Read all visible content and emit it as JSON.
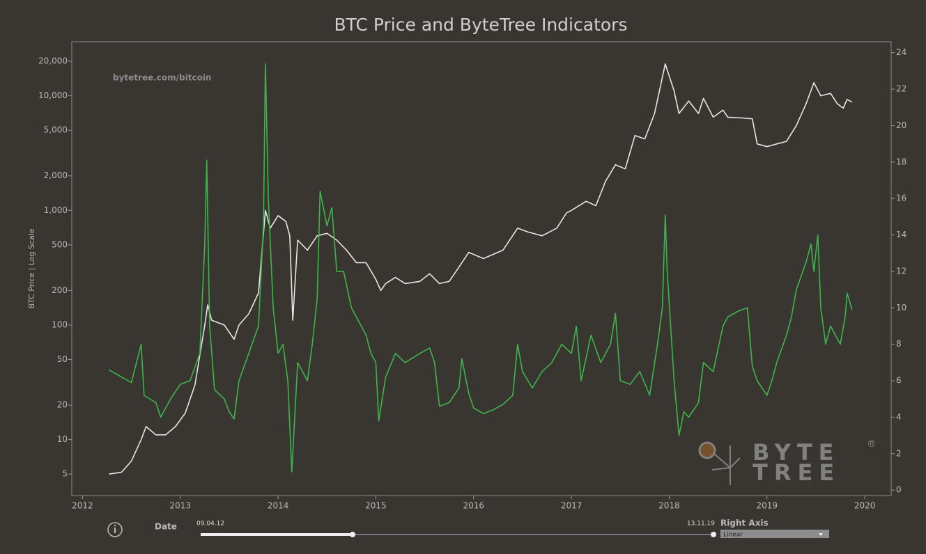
{
  "chart_data": {
    "type": "line",
    "title": "BTC Price and ByteTree Indicators",
    "ylabel": "BTC Price | Log Scale",
    "annotation": "bytetree.com/bitcoin",
    "log_y": true,
    "grid": false,
    "xlim": [
      2011.89,
      2020.27
    ],
    "xticks": [
      2012,
      2013,
      2014,
      2015,
      2016,
      2017,
      2018,
      2019,
      2020
    ],
    "ylim": [
      3.25,
      29600
    ],
    "yticks": [
      {
        "value": 20000,
        "label": "20,000"
      },
      {
        "value": 10000,
        "label": "10,000"
      },
      {
        "value": 5000,
        "label": "5,000"
      },
      {
        "value": 2000,
        "label": "2,000"
      },
      {
        "value": 1000,
        "label": "1,000"
      },
      500,
      200,
      100,
      50,
      20,
      10,
      5
    ],
    "y2lim": [
      -0.3,
      24.6
    ],
    "y2ticks": [
      0,
      2,
      4,
      6,
      8,
      10,
      12,
      14,
      16,
      18,
      20,
      22,
      24
    ],
    "series": [
      {
        "color": "#e6e6e6",
        "x": [
          2012.27,
          2012.4,
          2012.5,
          2012.6,
          2012.65,
          2012.75,
          2012.85,
          2012.95,
          2013.05,
          2013.15,
          2013.25,
          2013.28,
          2013.32,
          2013.45,
          2013.55,
          2013.6,
          2013.7,
          2013.8,
          2013.87,
          2013.92,
          2014.0,
          2014.08,
          2014.12,
          2014.15,
          2014.2,
          2014.3,
          2014.4,
          2014.5,
          2014.6,
          2014.7,
          2014.8,
          2014.9,
          2015.0,
          2015.05,
          2015.1,
          2015.2,
          2015.3,
          2015.45,
          2015.55,
          2015.65,
          2015.75,
          2015.85,
          2015.95,
          2016.1,
          2016.3,
          2016.45,
          2016.55,
          2016.7,
          2016.85,
          2016.95,
          2017.0,
          2017.15,
          2017.25,
          2017.35,
          2017.45,
          2017.55,
          2017.65,
          2017.75,
          2017.85,
          2017.96,
          2018.05,
          2018.1,
          2018.2,
          2018.3,
          2018.35,
          2018.45,
          2018.55,
          2018.6,
          2018.75,
          2018.85,
          2018.9,
          2019.0,
          2019.1,
          2019.2,
          2019.3,
          2019.4,
          2019.48,
          2019.55,
          2019.65,
          2019.72,
          2019.78,
          2019.82,
          2019.87
        ],
        "values": [
          5,
          5.2,
          6.5,
          10,
          13,
          11,
          11,
          13,
          17,
          30,
          100,
          150,
          110,
          100,
          75,
          100,
          125,
          190,
          1000,
          700,
          900,
          800,
          600,
          110,
          550,
          450,
          600,
          630,
          550,
          450,
          350,
          350,
          250,
          200,
          230,
          260,
          230,
          240,
          280,
          230,
          240,
          320,
          430,
          380,
          450,
          700,
          650,
          600,
          700,
          950,
          1000,
          1200,
          1100,
          1800,
          2500,
          2300,
          4500,
          4200,
          7000,
          19000,
          11000,
          7000,
          9000,
          7000,
          9500,
          6500,
          7500,
          6500,
          6400,
          6300,
          3800,
          3600,
          3800,
          4000,
          5500,
          8500,
          13000,
          10000,
          10500,
          8500,
          7800,
          9300,
          8800
        ]
      },
      {
        "color": "#3db54a",
        "axis": "y2",
        "x": [
          2012.27,
          2012.4,
          2012.5,
          2012.6,
          2012.63,
          2012.75,
          2012.8,
          2012.9,
          2013.0,
          2013.1,
          2013.2,
          2013.25,
          2013.27,
          2013.3,
          2013.35,
          2013.45,
          2013.5,
          2013.55,
          2013.6,
          2013.7,
          2013.8,
          2013.85,
          2013.87,
          2013.9,
          2013.95,
          2014.0,
          2014.05,
          2014.1,
          2014.14,
          2014.2,
          2014.3,
          2014.35,
          2014.4,
          2014.43,
          2014.5,
          2014.55,
          2014.6,
          2014.67,
          2014.75,
          2014.8,
          2014.9,
          2014.95,
          2015.0,
          2015.03,
          2015.1,
          2015.2,
          2015.3,
          2015.45,
          2015.55,
          2015.6,
          2015.65,
          2015.75,
          2015.85,
          2015.88,
          2015.95,
          2016.0,
          2016.1,
          2016.2,
          2016.3,
          2016.4,
          2016.45,
          2016.5,
          2016.6,
          2016.7,
          2016.8,
          2016.9,
          2017.0,
          2017.05,
          2017.1,
          2017.2,
          2017.3,
          2017.4,
          2017.45,
          2017.5,
          2017.6,
          2017.7,
          2017.8,
          2017.88,
          2017.93,
          2017.96,
          2017.98,
          2018.05,
          2018.1,
          2018.15,
          2018.2,
          2018.3,
          2018.35,
          2018.45,
          2018.55,
          2018.6,
          2018.7,
          2018.8,
          2018.85,
          2018.9,
          2019.0,
          2019.05,
          2019.1,
          2019.2,
          2019.25,
          2019.3,
          2019.4,
          2019.45,
          2019.48,
          2019.52,
          2019.55,
          2019.6,
          2019.65,
          2019.7,
          2019.75,
          2019.8,
          2019.82,
          2019.87
        ],
        "values": [
          6.6,
          6.2,
          5.9,
          8.0,
          5.2,
          4.8,
          4.0,
          5.0,
          5.8,
          6.0,
          7.5,
          13.5,
          18.1,
          9.0,
          5.5,
          5.0,
          4.3,
          3.9,
          6.0,
          7.5,
          9.0,
          14.5,
          23.4,
          16,
          10,
          7.5,
          8.0,
          6.0,
          1.0,
          7.0,
          6.0,
          8.0,
          10.5,
          16.4,
          14.5,
          15.5,
          12.0,
          12.0,
          10.0,
          9.5,
          8.5,
          7.5,
          7.0,
          3.8,
          6.2,
          7.5,
          7.0,
          7.5,
          7.8,
          7.0,
          4.6,
          4.8,
          5.6,
          7.2,
          5.3,
          4.5,
          4.2,
          4.4,
          4.7,
          5.2,
          8.0,
          6.5,
          5.6,
          6.5,
          7.0,
          8.0,
          7.5,
          9.0,
          6.0,
          8.5,
          7.0,
          8.0,
          9.7,
          6.0,
          5.8,
          6.5,
          5.2,
          8.0,
          10.0,
          15.1,
          12.0,
          6.0,
          3.0,
          4.3,
          4.0,
          4.8,
          7.0,
          6.5,
          9.0,
          9.5,
          9.8,
          10.0,
          6.8,
          6.0,
          5.2,
          6.0,
          7.0,
          8.5,
          9.5,
          11.0,
          12.5,
          13.5,
          12.0,
          14.0,
          10.0,
          8.0,
          9.0,
          8.5,
          8.0,
          9.5,
          10.8,
          9.9
        ]
      }
    ]
  },
  "logo": {
    "top": "BYTE",
    "bottom": "TREE",
    "mark": "®"
  },
  "controls": {
    "date_label": "Date",
    "start": "09.04.12",
    "end": "13.11.19",
    "right_axis_label": "Right Axis",
    "right_axis_value": "Linear"
  }
}
